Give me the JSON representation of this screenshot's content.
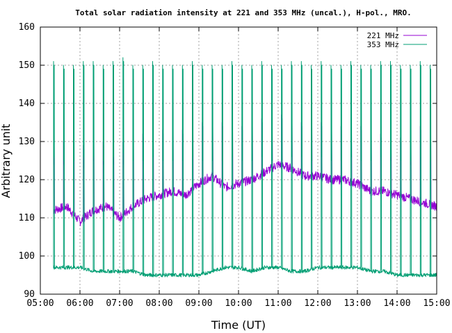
{
  "chart_data": {
    "type": "line",
    "title": "Total solar radiation intensity at 221 and 353 MHz (uncal.), H-pol., MRO.",
    "xlabel": "Time (UT)",
    "ylabel": "Arbitrary unit",
    "xlim": [
      "05:00",
      "15:00"
    ],
    "ylim": [
      90,
      160
    ],
    "x_ticks": [
      "05:00",
      "06:00",
      "07:00",
      "08:00",
      "09:00",
      "10:00",
      "11:00",
      "12:00",
      "13:00",
      "14:00",
      "15:00"
    ],
    "y_ticks": [
      90,
      100,
      110,
      120,
      130,
      140,
      150,
      160
    ],
    "grid": true,
    "legend_position": "top-right",
    "series": [
      {
        "name": "221 MHz",
        "color": "#9400d3",
        "x": [
          "05:20",
          "05:40",
          "06:00",
          "06:20",
          "06:40",
          "07:00",
          "07:20",
          "07:40",
          "08:00",
          "08:20",
          "08:40",
          "09:00",
          "09:20",
          "09:40",
          "10:00",
          "10:20",
          "10:40",
          "11:00",
          "11:20",
          "11:40",
          "12:00",
          "12:20",
          "12:40",
          "13:00",
          "13:20",
          "13:40",
          "14:00",
          "14:20",
          "14:40",
          "15:00"
        ],
        "baseline": [
          112,
          113,
          109,
          112,
          113,
          110,
          113,
          115,
          116,
          117,
          116,
          119,
          121,
          118,
          119,
          120,
          122,
          124,
          123,
          121,
          121,
          120,
          120,
          119,
          117,
          117,
          116,
          115,
          114,
          113
        ],
        "peak_times": [
          "05:20",
          "05:35",
          "05:50",
          "06:05",
          "06:20",
          "06:35",
          "06:50",
          "07:05",
          "07:20",
          "07:35",
          "07:50",
          "08:05",
          "08:20",
          "08:35",
          "08:50",
          "09:05",
          "09:20",
          "09:35",
          "09:50",
          "10:05",
          "10:20",
          "10:35",
          "10:50",
          "11:05",
          "11:20",
          "11:35",
          "11:50",
          "12:05",
          "12:20",
          "12:35",
          "12:50",
          "13:05",
          "13:20",
          "13:35",
          "13:50",
          "14:05",
          "14:20",
          "14:35",
          "14:50"
        ],
        "peak_values": [
          130,
          130,
          131,
          129,
          131,
          130,
          130,
          130,
          131,
          132,
          132,
          133,
          134,
          133,
          133,
          135,
          135,
          135,
          134,
          134,
          135,
          136,
          134,
          137,
          136,
          135,
          135,
          135,
          134,
          134,
          133,
          134,
          133,
          132,
          131,
          131,
          130,
          134,
          132
        ]
      },
      {
        "name": "353 MHz",
        "color": "#009e73",
        "x": [
          "05:20",
          "05:40",
          "06:00",
          "06:20",
          "06:40",
          "07:00",
          "07:20",
          "07:40",
          "08:00",
          "08:20",
          "08:40",
          "09:00",
          "09:20",
          "09:40",
          "10:00",
          "10:20",
          "10:40",
          "11:00",
          "11:20",
          "11:40",
          "12:00",
          "12:20",
          "12:40",
          "13:00",
          "13:20",
          "13:40",
          "14:00",
          "14:20",
          "14:40",
          "15:00"
        ],
        "baseline": [
          97,
          97,
          97,
          96,
          96,
          96,
          96,
          95,
          95,
          95,
          95,
          95,
          96,
          97,
          97,
          96,
          97,
          97,
          96,
          96,
          97,
          97,
          97,
          97,
          96,
          96,
          95,
          95,
          95,
          95
        ],
        "peak_times": [
          "05:20",
          "05:35",
          "05:50",
          "06:05",
          "06:20",
          "06:35",
          "06:50",
          "07:05",
          "07:20",
          "07:35",
          "07:50",
          "08:05",
          "08:20",
          "08:35",
          "08:50",
          "09:05",
          "09:20",
          "09:35",
          "09:50",
          "10:05",
          "10:20",
          "10:35",
          "10:50",
          "11:05",
          "11:20",
          "11:35",
          "11:50",
          "12:05",
          "12:20",
          "12:35",
          "12:50",
          "13:05",
          "13:20",
          "13:35",
          "13:50",
          "14:05",
          "14:20",
          "14:35",
          "14:50"
        ],
        "peak_values": [
          151,
          150,
          150,
          151,
          151,
          150,
          151,
          152,
          150,
          150,
          151,
          150,
          150,
          150,
          151,
          150,
          150,
          150,
          151,
          150,
          150,
          151,
          150,
          150,
          151,
          151,
          150,
          151,
          150,
          150,
          151,
          150,
          150,
          151,
          151,
          150,
          150,
          151,
          150
        ]
      }
    ]
  }
}
